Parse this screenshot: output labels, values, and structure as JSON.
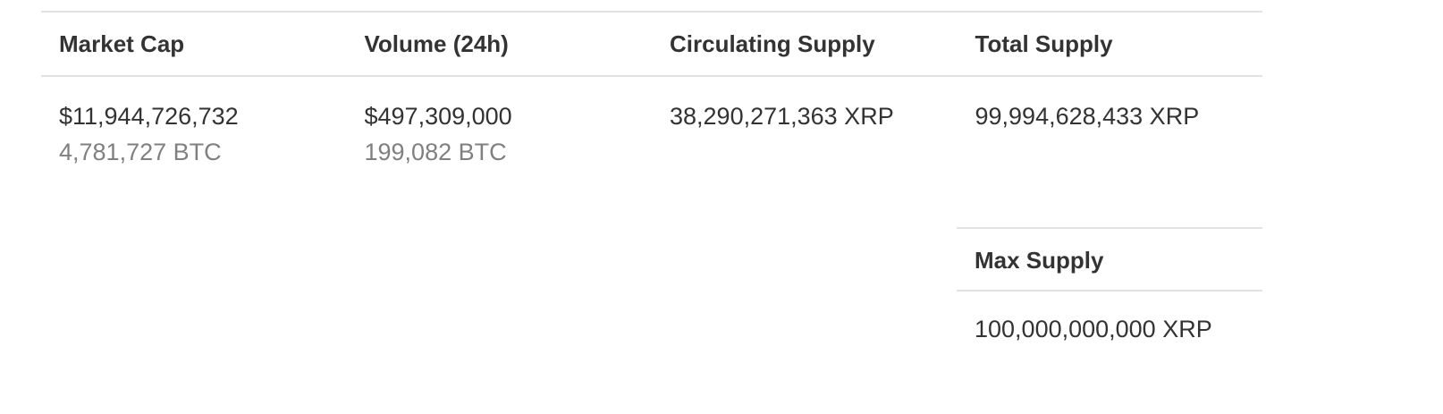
{
  "stats": {
    "columns": [
      {
        "header": "Market Cap",
        "value": "$11,944,726,732",
        "sub_value": "4,781,727 BTC"
      },
      {
        "header": "Volume (24h)",
        "value": "$497,309,000",
        "sub_value": "199,082 BTC"
      },
      {
        "header": "Circulating Supply",
        "value": "38,290,271,363 XRP"
      },
      {
        "header": "Total Supply",
        "value": "99,994,628,433 XRP"
      }
    ],
    "max_supply": {
      "header": "Max Supply",
      "value": "100,000,000,000 XRP"
    }
  },
  "colors": {
    "text": "#333333",
    "muted": "#808080",
    "border": "#e2e2e2"
  }
}
